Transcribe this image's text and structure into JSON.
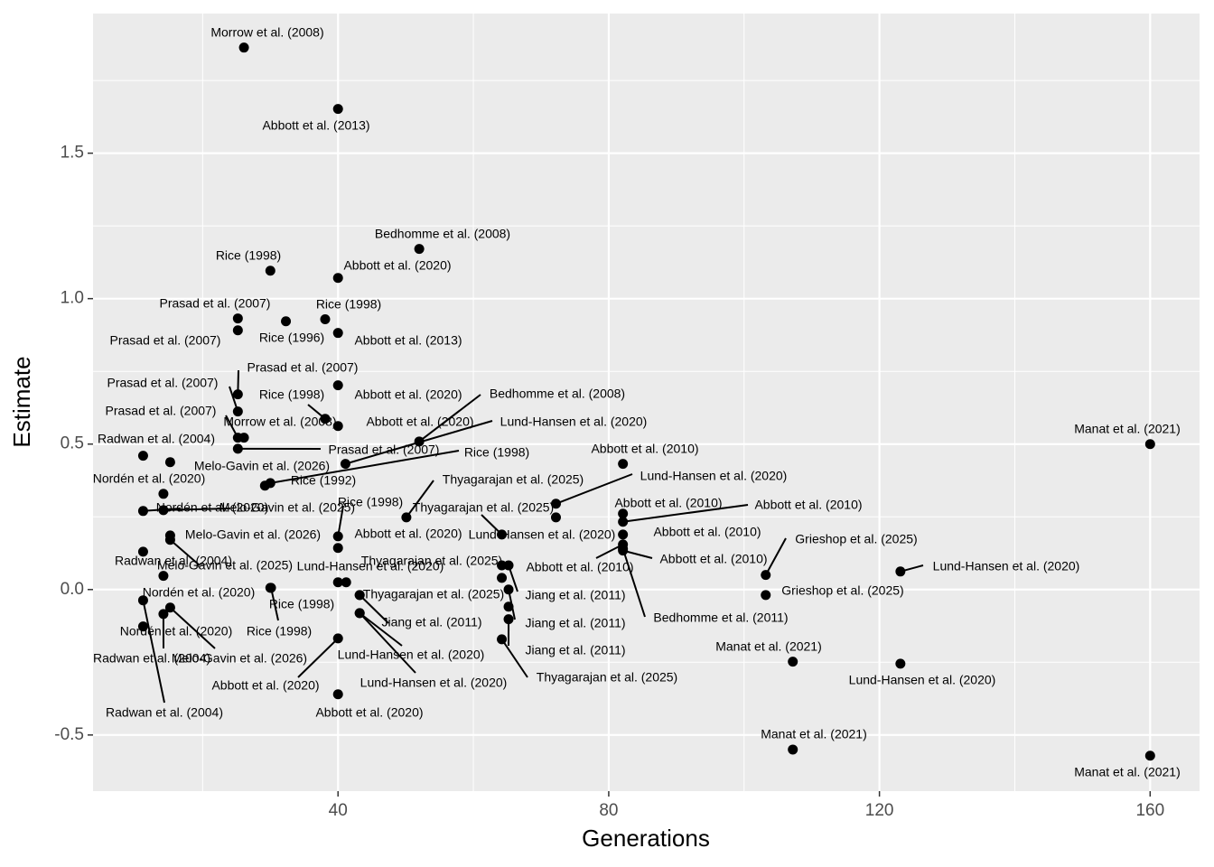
{
  "chart_data": {
    "type": "scatter",
    "xlabel": "Generations",
    "ylabel": "Estimate",
    "xlim": [
      3.8,
      167.3
    ],
    "ylim": [
      -0.693,
      1.98
    ],
    "xticks": [
      40,
      80,
      120,
      160
    ],
    "yticks": [
      -0.5,
      {
        "value": 0,
        "label": "0.0"
      },
      0.5,
      {
        "value": 1,
        "label": "1.0"
      },
      1.5
    ],
    "grid": true,
    "color": "#000000",
    "x": [
      26.1,
      40,
      52,
      30,
      40,
      25.2,
      25.2,
      32.3,
      38.1,
      40,
      25.2,
      40,
      25.2,
      38.1,
      40,
      52,
      41.1,
      25.2,
      26.1,
      25.2,
      11.2,
      15.2,
      30,
      29.2,
      14.2,
      50.1,
      72.2,
      82.1,
      160,
      11.2,
      14.2,
      40,
      64.2,
      72.2,
      82.1,
      82.1,
      82.1,
      103.2,
      15.2,
      15.2,
      40,
      11.2,
      40,
      41.2,
      14.2,
      82.1,
      82.1,
      82.1,
      123.1,
      103.2,
      65.2,
      64.2,
      64.2,
      65.2,
      65.2,
      65.2,
      64.2,
      11.2,
      30,
      43.2,
      14.2,
      15.2,
      11.2,
      30.1,
      43.2,
      43.2,
      43.2,
      40,
      40,
      107.2,
      123.1,
      107.2,
      160
    ],
    "y": [
      1.863,
      1.652,
      1.171,
      1.096,
      1.071,
      0.932,
      0.891,
      0.922,
      0.929,
      0.882,
      0.671,
      0.702,
      0.612,
      0.587,
      0.562,
      0.509,
      0.432,
      0.522,
      0.522,
      0.484,
      0.46,
      0.438,
      0.366,
      0.357,
      0.329,
      0.248,
      0.295,
      0.432,
      0.5,
      0.27,
      0.273,
      0.183,
      0.189,
      0.248,
      0.261,
      0.233,
      0.189,
      0.05,
      0.186,
      0.171,
      0.143,
      0.13,
      0.025,
      0.025,
      0.047,
      0.155,
      0.134,
      0.14,
      0.062,
      -0.019,
      0.083,
      0.083,
      0.04,
      0.0,
      -0.059,
      -0.102,
      -0.171,
      -0.037,
      0.006,
      -0.019,
      -0.084,
      -0.062,
      -0.127,
      0.006,
      -0.081,
      -0.081,
      -0.019,
      -0.168,
      -0.36,
      -0.248,
      -0.255,
      -0.55,
      -0.571
    ],
    "labels": [
      "Morrow et al. (2008)",
      "Abbott et al. (2013)",
      "Bedhomme et al. (2008)",
      "Rice (1998)",
      "Abbott et al. (2020)",
      "Prasad et al. (2007)",
      "Prasad et al. (2007)",
      "Rice (1996)",
      "Rice (1998)",
      "Abbott et al. (2013)",
      "Prasad et al. (2007)",
      "Abbott et al. (2020)",
      "Prasad et al. (2007)",
      "Rice (1998)",
      "Abbott et al. (2020)",
      "Bedhomme et al. (2008)",
      "Lund-Hansen et al. (2020)",
      "Prasad et al. (2007)",
      "Morrow et al. (2008)",
      "Prasad et al. (2007)",
      "Radwan et al. (2004)",
      "Melo-Gavin et al. (2026)",
      "Rice (1998)",
      "Rice (1992)",
      "Nordén et al. (2020)",
      "Thyagarajan et al. (2025)",
      "Lund-Hansen et al. (2020)",
      "Abbott et al. (2010)",
      "Manat et al. (2021)",
      "Nordén et al. (2020)",
      "Melo-Gavin et al. (2025)",
      "Rice (1998)",
      "Thyagarajan et al. (2025)",
      "Lund-Hansen et al. (2020)",
      "Abbott et al. (2010)",
      "Abbott et al. (2010)",
      "Abbott et al. (2010)",
      "Grieshop et al. (2025)",
      "Melo-Gavin et al. (2026)",
      "Melo-Gavin et al. (2025)",
      "Abbott et al. (2020)",
      "Radwan et al. (2004)",
      "Lund-Hansen et al. (2020)",
      "Thyagarajan et al. (2025)",
      "Nordén et al. (2020)",
      "Abbott et al. (2010)",
      "Abbott et al. (2010)",
      "Bedhomme et al. (2011)",
      "Lund-Hansen et al. (2020)",
      "Grieshop et al. (2025)",
      "Jiang et al. (2011)",
      null,
      null,
      "Jiang et al. (2011)",
      null,
      "Jiang et al. (2011)",
      "Thyagarajan et al. (2025)",
      "Radwan et al. (2004)",
      "Rice (1998)",
      "Thyagarajan et al. (2025)",
      "Nordén et al. (2020)",
      "Melo-Gavin et al. (2026)",
      "Radwan et al. (2004)",
      "Rice (1998)",
      "Lund-Hansen et al. (2020)",
      "Lund-Hansen et al. (2020)",
      "Jiang et al. (2011)",
      "Abbott et al. (2020)",
      "Abbott et al. (2020)",
      "Manat et al. (2021)",
      "Lund-Hansen et al. (2020)",
      "Manat et al. (2021)",
      "Manat et al. (2021)"
    ]
  }
}
